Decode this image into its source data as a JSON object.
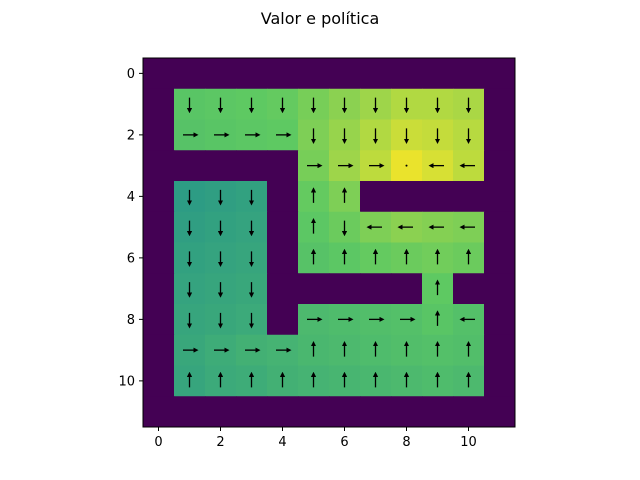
{
  "chart_data": {
    "type": "heatmap",
    "title": "Valor e política",
    "xlabel": "",
    "ylabel": "",
    "xlim": [
      -0.5,
      11.5
    ],
    "ylim": [
      11.5,
      -0.5
    ],
    "xticks": [
      "0",
      "2",
      "4",
      "6",
      "8",
      "10"
    ],
    "yticks": [
      "0",
      "2",
      "4",
      "6",
      "8",
      "10"
    ],
    "grid": false,
    "colormap": "viridis",
    "wall_color": "#440154",
    "value_range": [
      0,
      1
    ],
    "values": [
      [
        0,
        0,
        0,
        0,
        0,
        0,
        0,
        0,
        0,
        0,
        0,
        0
      ],
      [
        0,
        0.73,
        0.74,
        0.75,
        0.76,
        0.79,
        0.82,
        0.85,
        0.88,
        0.88,
        0.87,
        0
      ],
      [
        0,
        0.72,
        0.73,
        0.74,
        0.75,
        0.8,
        0.84,
        0.88,
        0.92,
        0.91,
        0.89,
        0
      ],
      [
        0,
        0,
        0,
        0,
        0,
        0.79,
        0.85,
        0.9,
        0.97,
        0.94,
        0.9,
        0
      ],
      [
        0,
        0.55,
        0.56,
        0.57,
        0,
        0.76,
        0.8,
        0,
        0,
        0,
        0,
        0
      ],
      [
        0,
        0.56,
        0.57,
        0.58,
        0,
        0.74,
        0.77,
        0.8,
        0.82,
        0.81,
        0.8,
        0
      ],
      [
        0,
        0.57,
        0.58,
        0.59,
        0,
        0.72,
        0.74,
        0.76,
        0.77,
        0.78,
        0.77,
        0
      ],
      [
        0,
        0.58,
        0.59,
        0.6,
        0,
        0,
        0,
        0,
        0,
        0.75,
        0,
        0
      ],
      [
        0,
        0.59,
        0.6,
        0.61,
        0,
        0.68,
        0.69,
        0.7,
        0.71,
        0.73,
        0.71,
        0
      ],
      [
        0,
        0.6,
        0.62,
        0.64,
        0.65,
        0.67,
        0.68,
        0.69,
        0.7,
        0.71,
        0.7,
        0
      ],
      [
        0,
        0.59,
        0.61,
        0.62,
        0.64,
        0.65,
        0.66,
        0.67,
        0.68,
        0.69,
        0.68,
        0
      ],
      [
        0,
        0,
        0,
        0,
        0,
        0,
        0,
        0,
        0,
        0,
        0,
        0
      ]
    ],
    "policy": [
      [
        "",
        "",
        "",
        "",
        "",
        "",
        "",
        "",
        "",
        "",
        "",
        ""
      ],
      [
        "",
        "down",
        "down",
        "down",
        "down",
        "down",
        "down",
        "down",
        "down",
        "down",
        "down",
        ""
      ],
      [
        "",
        "right",
        "right",
        "right",
        "right",
        "down",
        "down",
        "down",
        "down",
        "down",
        "down",
        ""
      ],
      [
        "",
        "",
        "",
        "",
        "",
        "right",
        "right",
        "right",
        "none",
        "left",
        "left",
        ""
      ],
      [
        "",
        "down",
        "down",
        "down",
        "",
        "up",
        "up",
        "",
        "",
        "",
        "",
        ""
      ],
      [
        "",
        "down",
        "down",
        "down",
        "",
        "up",
        "down",
        "left",
        "left",
        "left",
        "left",
        ""
      ],
      [
        "",
        "down",
        "down",
        "down",
        "",
        "up",
        "up",
        "up",
        "up",
        "up",
        "up",
        ""
      ],
      [
        "",
        "down",
        "down",
        "down",
        "",
        "",
        "",
        "",
        "",
        "up",
        "",
        ""
      ],
      [
        "",
        "down",
        "down",
        "down",
        "",
        "right",
        "right",
        "right",
        "right",
        "up",
        "left",
        ""
      ],
      [
        "",
        "right",
        "right",
        "right",
        "right",
        "up",
        "up",
        "up",
        "up",
        "up",
        "up",
        ""
      ],
      [
        "",
        "up",
        "up",
        "up",
        "up",
        "up",
        "up",
        "up",
        "up",
        "up",
        "up",
        ""
      ],
      [
        "",
        "",
        "",
        "",
        "",
        "",
        "",
        "",
        "",
        "",
        "",
        ""
      ]
    ]
  }
}
